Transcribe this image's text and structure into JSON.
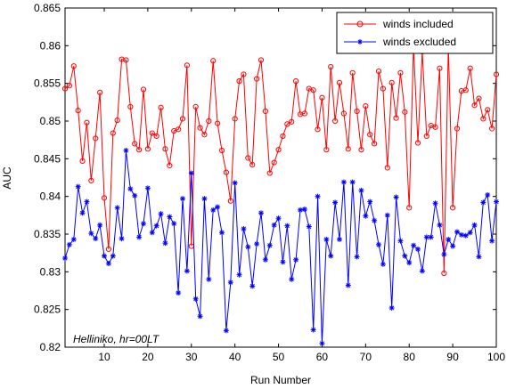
{
  "chart_data": {
    "type": "line",
    "title": "",
    "xlabel": "Run Number",
    "ylabel": "AUC",
    "xlim": [
      1,
      100
    ],
    "ylim": [
      0.82,
      0.865
    ],
    "xticks": [
      10,
      20,
      30,
      40,
      50,
      60,
      70,
      80,
      90,
      100
    ],
    "yticks": [
      0.82,
      0.825,
      0.83,
      0.835,
      0.84,
      0.845,
      0.85,
      0.855,
      0.86,
      0.865
    ],
    "ytick_labels": [
      "0.82",
      "0.825",
      "0.83",
      "0.835",
      "0.84",
      "0.845",
      "0.85",
      "0.855",
      "0.86",
      "0.865"
    ],
    "grid": false,
    "legend_position": "top-right",
    "annotation": "Helliniko, hr=00LT",
    "x": [
      1,
      2,
      3,
      4,
      5,
      6,
      7,
      8,
      9,
      10,
      11,
      12,
      13,
      14,
      15,
      16,
      17,
      18,
      19,
      20,
      21,
      22,
      23,
      24,
      25,
      26,
      27,
      28,
      29,
      30,
      31,
      32,
      33,
      34,
      35,
      36,
      37,
      38,
      39,
      40,
      41,
      42,
      43,
      44,
      45,
      46,
      47,
      48,
      49,
      50,
      51,
      52,
      53,
      54,
      55,
      56,
      57,
      58,
      59,
      60,
      61,
      62,
      63,
      64,
      65,
      66,
      67,
      68,
      69,
      70,
      71,
      72,
      73,
      74,
      75,
      76,
      77,
      78,
      79,
      80,
      81,
      82,
      83,
      84,
      85,
      86,
      87,
      88,
      89,
      90,
      91,
      92,
      93,
      94,
      95,
      96,
      97,
      98,
      99,
      100
    ],
    "series": [
      {
        "name": "winds included",
        "color": "#ff0000",
        "marker": "circle",
        "values": [
          0.8543,
          0.8547,
          0.8573,
          0.8514,
          0.8447,
          0.8498,
          0.8421,
          0.8477,
          0.8538,
          0.8398,
          0.833,
          0.8484,
          0.8501,
          0.8582,
          0.8581,
          0.8519,
          0.847,
          0.8462,
          0.8542,
          0.8463,
          0.8484,
          0.848,
          0.8518,
          0.8463,
          0.8441,
          0.8487,
          0.8489,
          0.8503,
          0.8574,
          0.8334,
          0.8519,
          0.8491,
          0.8482,
          0.85,
          0.858,
          0.8497,
          0.8461,
          0.8432,
          0.8394,
          0.8503,
          0.8553,
          0.8562,
          0.8451,
          0.8442,
          0.8556,
          0.8581,
          0.8513,
          0.8431,
          0.8445,
          0.8462,
          0.848,
          0.8496,
          0.8499,
          0.8553,
          0.8509,
          0.851,
          0.8543,
          0.8541,
          0.8489,
          0.8531,
          0.8462,
          0.8572,
          0.85,
          0.8551,
          0.851,
          0.8463,
          0.8564,
          0.8513,
          0.8462,
          0.852,
          0.8482,
          0.847,
          0.8566,
          0.8543,
          0.8438,
          0.8551,
          0.8504,
          0.8564,
          0.8512,
          0.8385,
          0.86,
          0.8471,
          0.8592,
          0.848,
          0.8494,
          0.8492,
          0.857,
          0.8298,
          0.86,
          0.8385,
          0.849,
          0.854,
          0.8541,
          0.857,
          0.8521,
          0.853,
          0.8503,
          0.8515,
          0.849,
          0.8562
        ]
      },
      {
        "name": "winds excluded",
        "color": "#0000ff",
        "marker": "asterisk",
        "values": [
          0.8318,
          0.8336,
          0.8343,
          0.8413,
          0.8378,
          0.8393,
          0.8351,
          0.8344,
          0.8362,
          0.8321,
          0.8311,
          0.8321,
          0.8385,
          0.8344,
          0.8461,
          0.841,
          0.8401,
          0.8346,
          0.8364,
          0.8411,
          0.8352,
          0.8361,
          0.8377,
          0.8338,
          0.8373,
          0.8364,
          0.8272,
          0.8397,
          0.8301,
          0.8431,
          0.8264,
          0.8241,
          0.8397,
          0.829,
          0.8382,
          0.8386,
          0.8352,
          0.8222,
          0.8286,
          0.8418,
          0.8296,
          0.8357,
          0.8333,
          0.8281,
          0.8337,
          0.8378,
          0.8316,
          0.8335,
          0.8362,
          0.8371,
          0.8313,
          0.8361,
          0.829,
          0.8316,
          0.8382,
          0.8383,
          0.836,
          0.8223,
          0.84,
          0.8205,
          0.8343,
          0.8321,
          0.8392,
          0.8343,
          0.8419,
          0.8282,
          0.8419,
          0.832,
          0.8408,
          0.8374,
          0.8393,
          0.8368,
          0.8336,
          0.831,
          0.8375,
          0.8252,
          0.8399,
          0.8341,
          0.8321,
          0.8312,
          0.8335,
          0.833,
          0.8301,
          0.8346,
          0.8346,
          0.8391,
          0.8362,
          0.8323,
          0.8343,
          0.8334,
          0.8353,
          0.8349,
          0.8348,
          0.8352,
          0.8362,
          0.832,
          0.8392,
          0.8402,
          0.8341,
          0.8393
        ]
      }
    ]
  }
}
